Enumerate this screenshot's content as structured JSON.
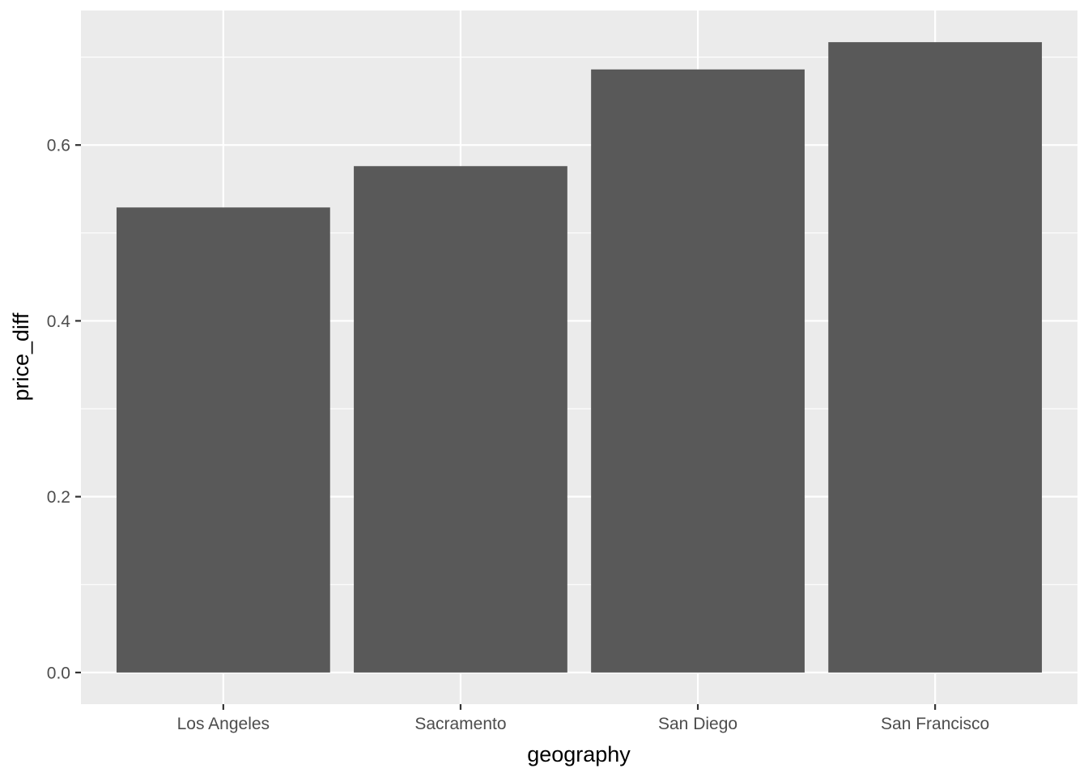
{
  "chart_data": {
    "type": "bar",
    "categories": [
      "Los Angeles",
      "Sacramento",
      "San Diego",
      "San Francisco"
    ],
    "values": [
      0.529,
      0.576,
      0.686,
      0.717
    ],
    "xlabel": "geography",
    "ylabel": "price_diff",
    "ylim": [
      -0.036,
      0.753
    ],
    "yticks": [
      0.0,
      0.2,
      0.4,
      0.6
    ],
    "ytick_labels": [
      "0.0",
      "0.2",
      "0.4",
      "0.6"
    ],
    "grid": true,
    "legend": "none",
    "colors": {
      "bar": "#595959",
      "panel": "#ebebeb",
      "grid": "#ffffff",
      "tick_text": "#4d4d4d",
      "tick_mark": "#333333"
    }
  }
}
